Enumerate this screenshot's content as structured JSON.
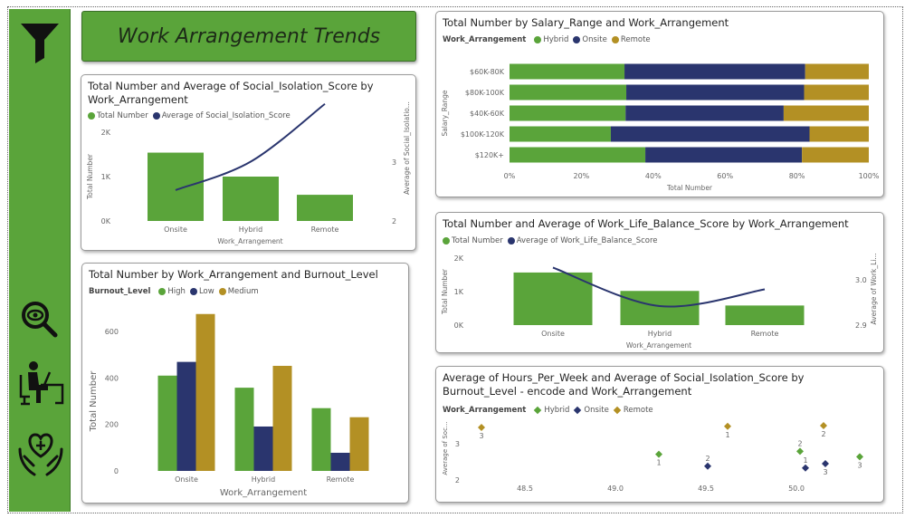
{
  "dashboard_title": "Work Arrangement Trends",
  "sidebar": {
    "icons": [
      "filter-icon",
      "eye-search-icon",
      "person-at-desk-icon",
      "hands-heart-icon"
    ]
  },
  "colors": {
    "green": "#5aa43a",
    "navy": "#2a356e",
    "gold": "#b39024"
  },
  "chart_data": [
    {
      "id": "social_isolation",
      "type": "bar+line",
      "title": "Total Number and Average of Social_Isolation_Score by Work_Arrangement",
      "title_line1": "Total Number and Average of Social_Isolation_Score by",
      "title_line2": "Work_Arrangement",
      "legend": [
        "Total Number",
        "Average of Social_Isolation_Score"
      ],
      "categories": [
        "Onsite",
        "Hybrid",
        "Remote"
      ],
      "bars": [
        1540,
        1000,
        590
      ],
      "line": [
        2.39,
        2.75,
        3.48
      ],
      "xlabel": "Work_Arrangement",
      "ylabel": "Total Number",
      "y2label": "Average of Social_Isolatio...",
      "yticks": [
        "0K",
        "1K",
        "2K"
      ],
      "ylim": [
        0,
        2000
      ],
      "y2ticks": [
        "2",
        "3"
      ],
      "y2lim": [
        2,
        3.5
      ]
    },
    {
      "id": "burnout",
      "type": "bar",
      "title": "Total Number by Work_Arrangement and Burnout_Level",
      "legend_title": "Burnout_Level",
      "categories": [
        "Onsite",
        "Hybrid",
        "Remote"
      ],
      "series": [
        {
          "name": "High",
          "values": [
            410,
            358,
            270
          ]
        },
        {
          "name": "Low",
          "values": [
            469,
            191,
            78
          ]
        },
        {
          "name": "Medium",
          "values": [
            675,
            452,
            231
          ]
        }
      ],
      "xlabel": "Work_Arrangement",
      "ylabel": "Total Number",
      "yticks": [
        "0",
        "200",
        "400",
        "600"
      ],
      "ylim": [
        0,
        600
      ]
    },
    {
      "id": "salary",
      "type": "bar",
      "orientation": "horizontal-100%-stacked",
      "title": "Total Number by Salary_Range and Work_Arrangement",
      "legend_title": "Work_Arrangement",
      "categories": [
        "$60K-80K",
        "$80K-100K",
        "$40K-60K",
        "$100K-120K",
        "$120K+"
      ],
      "series": [
        {
          "name": "Hybrid",
          "values": [
            32.0,
            32.5,
            32.3,
            28.2,
            37.8
          ]
        },
        {
          "name": "Onsite",
          "values": [
            50.3,
            49.5,
            44.0,
            55.3,
            43.6
          ]
        },
        {
          "name": "Remote",
          "values": [
            17.7,
            18.0,
            23.7,
            16.5,
            18.6
          ]
        }
      ],
      "xlabel": "Total Number",
      "ylabel": "Salary_Range",
      "xticks": [
        "0%",
        "20%",
        "40%",
        "60%",
        "80%",
        "100%"
      ]
    },
    {
      "id": "work_life",
      "type": "bar+line",
      "title": "Total Number and Average of Work_Life_Balance_Score by Work_Arrangement",
      "legend": [
        "Total Number",
        "Average of Work_Life_Balance_Score"
      ],
      "categories": [
        "Onsite",
        "Hybrid",
        "Remote"
      ],
      "bars": [
        1570,
        1020,
        585
      ],
      "line": [
        3.027,
        2.942,
        2.979
      ],
      "xlabel": "Work_Arrangement",
      "ylabel": "Total Number",
      "y2label": "Average of Work_Li...",
      "yticks": [
        "0K",
        "1K",
        "2K"
      ],
      "ylim": [
        0,
        2000
      ],
      "y2ticks": [
        "2.9",
        "3.0"
      ],
      "y2lim": [
        2.9,
        3.0
      ]
    },
    {
      "id": "hours_scatter",
      "type": "scatter",
      "title_line1": "Average of Hours_Per_Week and Average of Social_Isolation_Score by",
      "title_line2": "Burnout_Level - encode and Work_Arrangement",
      "legend_title": "Work_Arrangement",
      "series": [
        {
          "name": "Hybrid",
          "points": [
            {
              "x": 49.24,
              "y": 2.71,
              "label": "1"
            },
            {
              "x": 50.02,
              "y": 2.79,
              "label": "2"
            },
            {
              "x": 50.35,
              "y": 2.64,
              "label": "3"
            }
          ]
        },
        {
          "name": "Onsite",
          "points": [
            {
              "x": 49.51,
              "y": 2.38,
              "label": "2"
            },
            {
              "x": 50.05,
              "y": 2.33,
              "label": "1"
            },
            {
              "x": 50.16,
              "y": 2.45,
              "label": "3"
            }
          ]
        },
        {
          "name": "Remote",
          "points": [
            {
              "x": 48.26,
              "y": 3.45,
              "label": "3"
            },
            {
              "x": 49.62,
              "y": 3.48,
              "label": "1"
            },
            {
              "x": 50.15,
              "y": 3.5,
              "label": "2"
            }
          ]
        }
      ],
      "ylabel": "Average of Soc...",
      "xticks": [
        "48.5",
        "49.0",
        "49.5",
        "50.0"
      ],
      "yticks": [
        "2",
        "3"
      ]
    }
  ]
}
